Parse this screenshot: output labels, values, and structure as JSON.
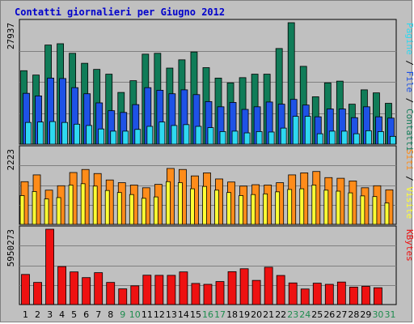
{
  "title": "Contatti giornalieri per Giugno 2012",
  "colors": {
    "contatti": "#107c58",
    "file": "#1e52e6",
    "pagine": "#2ed8f0",
    "visite": "#ff8c1a",
    "siti": "#ffff33",
    "kbytes": "#ee1111",
    "weekday_label": "#000000",
    "weekend_label": "#1e8c4e",
    "title": "#0000cc",
    "plot_bg": "#c0c0c0",
    "grid": "#808080"
  },
  "chart_data": [
    {
      "type": "bar",
      "title": "Contatti giornalieri per Giugno 2012",
      "categories": [
        "1",
        "2",
        "3",
        "4",
        "5",
        "6",
        "7",
        "8",
        "9",
        "10",
        "11",
        "12",
        "13",
        "14",
        "15",
        "16",
        "17",
        "18",
        "19",
        "20",
        "21",
        "22",
        "23",
        "24",
        "25",
        "26",
        "27",
        "28",
        "29",
        "30",
        "31"
      ],
      "weekend_days": [
        "9",
        "10",
        "16",
        "17",
        "23",
        "24",
        "30",
        "31"
      ],
      "ylabel_value": "27937",
      "ymax": 27937,
      "series_labels": {
        "pagine": "Pagine",
        "file": "File",
        "contatti": "Contatti"
      },
      "series": [
        {
          "key": "contatti",
          "values": [
            16900,
            15900,
            22800,
            23100,
            20900,
            18600,
            17200,
            16100,
            11900,
            14600,
            20700,
            20900,
            17500,
            19400,
            21200,
            17600,
            15200,
            14100,
            15300,
            16100,
            16100,
            22000,
            27937,
            17900,
            10900,
            14100,
            14500,
            9200,
            12500,
            11800,
            9400
          ]
        },
        {
          "key": "file",
          "values": [
            11700,
            11100,
            15200,
            15100,
            13000,
            11600,
            9500,
            7700,
            7300,
            9100,
            13000,
            12400,
            11600,
            12500,
            11400,
            9800,
            8600,
            9600,
            8000,
            8600,
            9700,
            9200,
            10300,
            9000,
            6300,
            8100,
            8100,
            6100,
            8600,
            6300,
            6000
          ]
        },
        {
          "key": "pagine",
          "values": [
            5000,
            5100,
            5200,
            5000,
            4600,
            4300,
            3500,
            3000,
            3000,
            3400,
            4100,
            5100,
            4300,
            4500,
            4100,
            3800,
            2900,
            3000,
            2600,
            2900,
            2800,
            3700,
            6400,
            6400,
            2400,
            3000,
            3000,
            2400,
            3100,
            2900,
            1800
          ]
        }
      ]
    },
    {
      "type": "bar",
      "ylabel_value": "2223",
      "ymax": 2223,
      "series_labels": {
        "siti": "Siti",
        "visite": "Visite"
      },
      "series": [
        {
          "key": "visite",
          "values": [
            1260,
            1460,
            1010,
            1140,
            1530,
            1620,
            1500,
            1310,
            1230,
            1160,
            1080,
            1180,
            1650,
            1620,
            1430,
            1520,
            1340,
            1250,
            1130,
            1170,
            1160,
            1230,
            1460,
            1520,
            1560,
            1380,
            1360,
            1280,
            1080,
            1140,
            1020
          ]
        },
        {
          "key": "siti",
          "values": [
            850,
            970,
            750,
            790,
            1160,
            1200,
            1130,
            1000,
            940,
            880,
            770,
            810,
            1260,
            1230,
            1050,
            1120,
            1010,
            940,
            850,
            880,
            900,
            960,
            1030,
            1050,
            1160,
            1010,
            980,
            930,
            840,
            820,
            630
          ]
        }
      ]
    },
    {
      "type": "bar",
      "ylabel_value": "5950273",
      "ymax": 5950273,
      "series_labels": {
        "kbytes": "KBytes"
      },
      "series": [
        {
          "key": "kbytes",
          "values": [
            2380000,
            1750000,
            5950273,
            3000000,
            2580000,
            2130000,
            2520000,
            1750000,
            1240000,
            1480000,
            2320000,
            2310000,
            2310000,
            2580000,
            1670000,
            1600000,
            1820000,
            2600000,
            2830000,
            1910000,
            2950000,
            2300000,
            1710000,
            1230000,
            1690000,
            1600000,
            1780000,
            1380000,
            1440000,
            1330000,
            0
          ]
        }
      ]
    }
  ]
}
